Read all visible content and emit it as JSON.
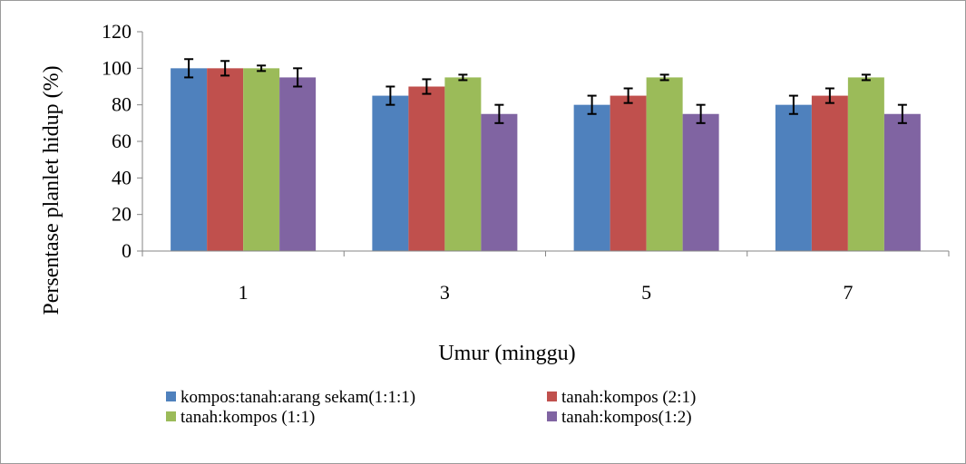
{
  "chart_data": {
    "type": "bar",
    "title": "",
    "xlabel": "Umur  (minggu)",
    "ylabel": "Persentase planlet hidup (%)",
    "ylim": [
      0,
      120
    ],
    "yticks": [
      "0",
      "20",
      "40",
      "60",
      "80",
      "100",
      "120"
    ],
    "categories": [
      "1",
      "3",
      "5",
      "7"
    ],
    "legend_position": "bottom",
    "grid": false,
    "series": [
      {
        "name": "kompos:tanah:arang sekam(1:1:1)",
        "color": "#4f81bd",
        "values": [
          100,
          85,
          80,
          80
        ],
        "errors": [
          5,
          5,
          5,
          5
        ]
      },
      {
        "name": "tanah:kompos (2:1)",
        "color": "#c0504d",
        "values": [
          100,
          90,
          85,
          85
        ],
        "errors": [
          4,
          4,
          4,
          4
        ]
      },
      {
        "name": "tanah:kompos (1:1)",
        "color": "#9bbb59",
        "values": [
          100,
          95,
          95,
          95
        ],
        "errors": [
          1.5,
          1.5,
          1.5,
          1.5
        ]
      },
      {
        "name": "tanah:kompos(1:2)",
        "color": "#8064a2",
        "values": [
          95,
          75,
          75,
          75
        ],
        "errors": [
          5,
          5,
          5,
          5
        ]
      }
    ]
  }
}
